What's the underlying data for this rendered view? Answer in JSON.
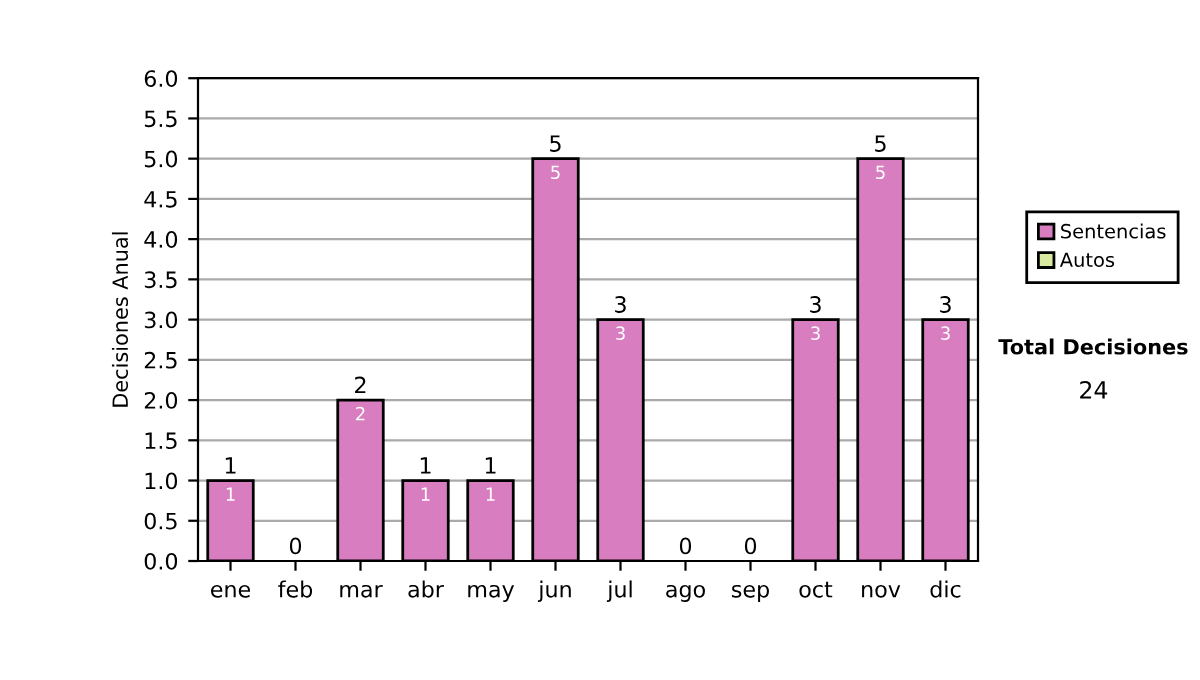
{
  "chart_data": [
    {
      "type": "bar",
      "ylabel": "Decisiones Anual",
      "categories": [
        "ene",
        "feb",
        "mar",
        "abr",
        "may",
        "jun",
        "jul",
        "ago",
        "sep",
        "oct",
        "nov",
        "dic"
      ],
      "stacked": true,
      "series": [
        {
          "name": "Sentencias",
          "color": "#d87ec0",
          "values": [
            1,
            0,
            2,
            1,
            1,
            5,
            3,
            0,
            0,
            3,
            5,
            3
          ],
          "value_labels": [
            "1",
            null,
            "2",
            "1",
            "1",
            "5",
            "3",
            null,
            null,
            "3",
            "5",
            "3"
          ]
        },
        {
          "name": "Autos",
          "color": "#d8eaa0",
          "values": [
            0,
            0,
            0,
            0,
            0,
            0,
            0,
            0,
            0,
            0,
            0,
            0
          ]
        }
      ],
      "totals": [
        "1",
        "0",
        "2",
        "1",
        "1",
        "5",
        "3",
        "0",
        "0",
        "3",
        "5",
        "3"
      ],
      "ylim": [
        0,
        6
      ],
      "yticks": [
        "0.0",
        "0.5",
        "1.0",
        "1.5",
        "2.0",
        "2.5",
        "3.0",
        "3.5",
        "4.0",
        "4.5",
        "5.0",
        "5.5",
        "6.0"
      ],
      "grid": "y",
      "legend": "right",
      "annotations": [
        "Total Decisiones",
        "24"
      ]
    }
  ]
}
